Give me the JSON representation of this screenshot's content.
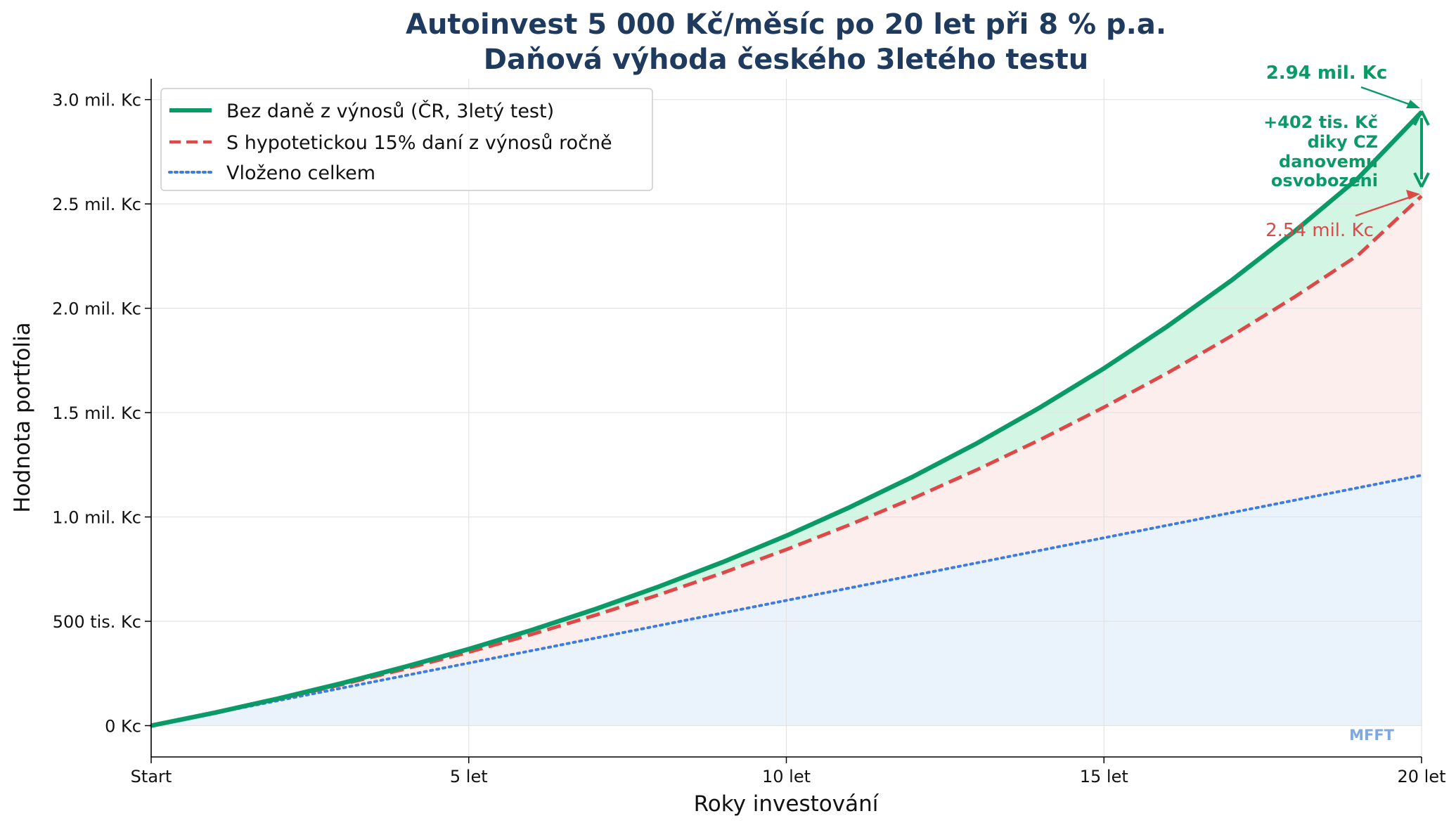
{
  "chart_data": {
    "type": "line",
    "title": "Autoinvest 5 000 Kč/měsíc po 20 let při 8 % p.a.",
    "subtitle": "Daňová výhoda českého 3letého testu",
    "xlabel": "Roky investování",
    "ylabel": "Hodnota portfolia",
    "xlim": [
      0,
      20
    ],
    "ylim": [
      -150000,
      3100000
    ],
    "x_ticks": [
      {
        "value": 0,
        "label": "Start"
      },
      {
        "value": 5,
        "label": "5 let"
      },
      {
        "value": 10,
        "label": "10 let"
      },
      {
        "value": 15,
        "label": "15 let"
      },
      {
        "value": 20,
        "label": "20 let"
      }
    ],
    "y_ticks": [
      {
        "value": 0,
        "label": "0 Kc"
      },
      {
        "value": 500000,
        "label": "500 tis. Kc"
      },
      {
        "value": 1000000,
        "label": "1.0 mil. Kc"
      },
      {
        "value": 1500000,
        "label": "1.5 mil. Kc"
      },
      {
        "value": 2000000,
        "label": "2.0 mil. Kc"
      },
      {
        "value": 2500000,
        "label": "2.5 mil. Kc"
      },
      {
        "value": 3000000,
        "label": "3.0 mil. Kc"
      }
    ],
    "grid": true,
    "legend_position": "top-left",
    "x": [
      0,
      1,
      2,
      3,
      4,
      5,
      6,
      7,
      8,
      9,
      10,
      11,
      12,
      13,
      14,
      15,
      16,
      17,
      18,
      19,
      20
    ],
    "series": [
      {
        "name": "Bez daně z výnosů (ČR, 3letý test)",
        "style": "solid",
        "color": "#0a9a68",
        "values": [
          0,
          62000,
          130000,
          203000,
          282000,
          367000,
          459000,
          559000,
          667000,
          784000,
          910000,
          1047000,
          1194000,
          1353000,
          1526000,
          1712000,
          1914000,
          2132000,
          2368000,
          2623000,
          2940000
        ]
      },
      {
        "name": "S hypotetickou 15% daní z výnosů ročně",
        "style": "dashed",
        "color": "#e04848",
        "values": [
          0,
          61000,
          127000,
          197000,
          272000,
          352000,
          438000,
          530000,
          628000,
          732000,
          844000,
          963000,
          1090000,
          1226000,
          1371000,
          1526000,
          1690000,
          1866000,
          2054000,
          2254000,
          2538000
        ]
      },
      {
        "name": "Vloženo celkem",
        "style": "dotted",
        "color": "#3b7de0",
        "values": [
          0,
          60000,
          120000,
          180000,
          240000,
          300000,
          360000,
          420000,
          480000,
          540000,
          600000,
          660000,
          720000,
          780000,
          840000,
          900000,
          960000,
          1020000,
          1080000,
          1140000,
          1200000
        ]
      }
    ],
    "annotations": {
      "top_value": "2.94 mil. Kc",
      "gain_lines": [
        "+402 tis. Kč",
        "diky CZ",
        "danovemu",
        "osvobozeni"
      ],
      "bottom_value": "2.54 mil. Kc",
      "watermark": "MFFT"
    },
    "colors": {
      "title": "#1e3a5f",
      "green": "#0a9a68",
      "red": "#e04848",
      "blue": "#3b7de0",
      "green_fill": "#d3f5e4",
      "red_fill": "#fdeeee",
      "blue_fill": "#eaf3fc",
      "watermark": "#7fa8e0"
    }
  }
}
